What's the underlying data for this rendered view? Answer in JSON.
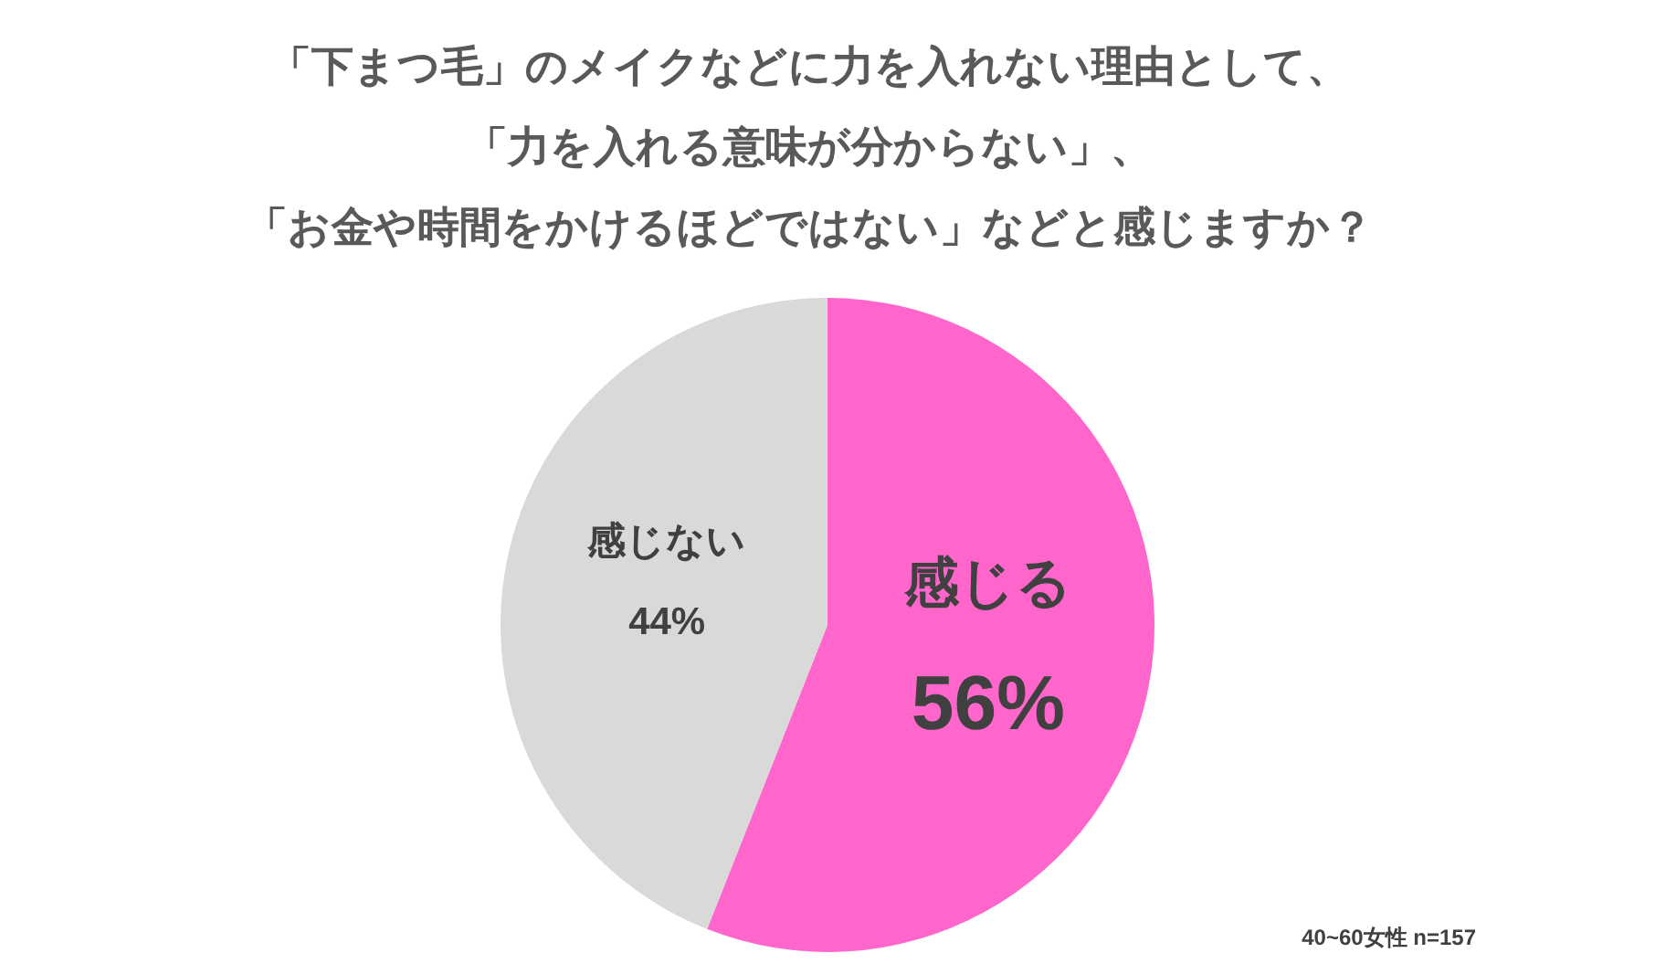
{
  "chart_data": {
    "type": "pie",
    "title": "「下まつ毛」のメイクなどに力を入れない理由として、「力を入れる意味が分からない」、「お金や時間をかけるほどではない」などと感じますか？",
    "categories": [
      "感じる",
      "感じない"
    ],
    "values": [
      56,
      44
    ],
    "colors": [
      "#ff66cc",
      "#d9d9d9"
    ],
    "value_labels": [
      "56%",
      "44%"
    ],
    "annotations": [
      "40~60女性 n=157"
    ]
  }
}
